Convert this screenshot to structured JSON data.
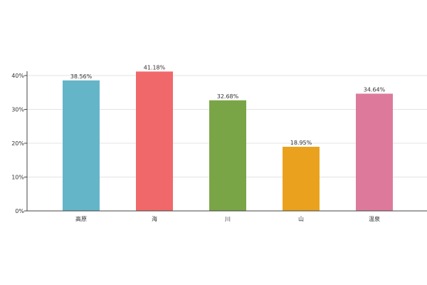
{
  "chart_data": {
    "type": "bar",
    "categories": [
      "高原",
      "海",
      "川",
      "山",
      "温泉"
    ],
    "values": [
      38.56,
      41.18,
      32.68,
      18.95,
      34.64
    ],
    "value_labels": [
      "38.56%",
      "41.18%",
      "32.68%",
      "18.95%",
      "34.64%"
    ],
    "colors": [
      "#65b5c9",
      "#f1686a",
      "#7aa547",
      "#eaa21e",
      "#dd7a9c"
    ],
    "ylim": [
      0,
      40
    ],
    "yticks": [
      0,
      10,
      20,
      30,
      40
    ],
    "ytick_labels": [
      "0%",
      "10%",
      "20%",
      "30%",
      "40%"
    ],
    "grid": true,
    "title": "",
    "xlabel": "",
    "ylabel": ""
  }
}
